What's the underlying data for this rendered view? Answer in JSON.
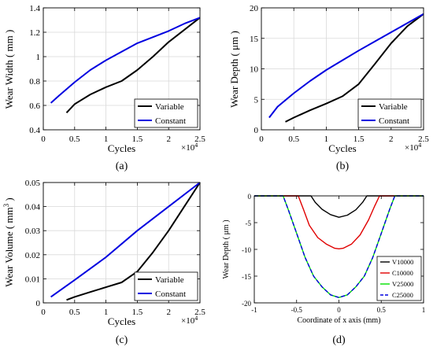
{
  "chart_data": [
    {
      "type": "line",
      "panel_label": "(a)",
      "xlabel": "Cycles",
      "ylabel": "Wear Width ( mm )",
      "x_multiplier": "×10",
      "x_multiplier_exp": "4",
      "xlim": [
        0,
        2.5
      ],
      "ylim": [
        0.4,
        1.4
      ],
      "xticks": [
        "0",
        "0.5",
        "1",
        "1.5",
        "2",
        "2.5"
      ],
      "yticks": [
        "0.4",
        "0.6",
        "0.8",
        "1",
        "1.2",
        "1.4"
      ],
      "xtick_values": [
        0,
        0.5,
        1,
        1.5,
        2,
        2.5
      ],
      "ytick_values": [
        0.4,
        0.6,
        0.8,
        1.0,
        1.2,
        1.4
      ],
      "grid": true,
      "legend_position": "bottom-right",
      "series": [
        {
          "name": "Variable",
          "color": "#000000",
          "x": [
            0.37,
            0.5,
            0.75,
            1.0,
            1.25,
            1.5,
            1.75,
            2.0,
            2.25,
            2.5
          ],
          "y": [
            0.54,
            0.61,
            0.69,
            0.75,
            0.8,
            0.89,
            1.0,
            1.12,
            1.22,
            1.32
          ]
        },
        {
          "name": "Constant",
          "color": "#0000e0",
          "x": [
            0.12,
            0.25,
            0.5,
            0.75,
            1.0,
            1.25,
            1.5,
            1.75,
            2.0,
            2.25,
            2.5
          ],
          "y": [
            0.62,
            0.68,
            0.79,
            0.89,
            0.97,
            1.04,
            1.11,
            1.16,
            1.21,
            1.27,
            1.32
          ]
        }
      ]
    },
    {
      "type": "line",
      "panel_label": "(b)",
      "xlabel": "Cycles",
      "ylabel": "Wear Depth ( μm )",
      "x_multiplier": "×10",
      "x_multiplier_exp": "4",
      "xlim": [
        0,
        2.5
      ],
      "ylim": [
        0,
        20
      ],
      "xticks": [
        "0",
        "0.5",
        "1",
        "1.5",
        "2",
        "2.5"
      ],
      "yticks": [
        "0",
        "5",
        "10",
        "15",
        "20"
      ],
      "xtick_values": [
        0,
        0.5,
        1,
        1.5,
        2,
        2.5
      ],
      "ytick_values": [
        0,
        5,
        10,
        15,
        20
      ],
      "grid": true,
      "legend_position": "bottom-right",
      "series": [
        {
          "name": "Variable",
          "color": "#000000",
          "x": [
            0.37,
            0.5,
            0.75,
            1.0,
            1.25,
            1.5,
            1.75,
            2.0,
            2.25,
            2.5
          ],
          "y": [
            1.3,
            2.0,
            3.2,
            4.3,
            5.5,
            7.5,
            10.8,
            14.2,
            17.0,
            19.0
          ]
        },
        {
          "name": "Constant",
          "color": "#0000e0",
          "x": [
            0.12,
            0.25,
            0.5,
            0.75,
            1.0,
            1.25,
            1.5,
            1.75,
            2.0,
            2.25,
            2.5
          ],
          "y": [
            2.0,
            3.8,
            6.0,
            8.0,
            9.8,
            11.4,
            13.0,
            14.5,
            16.0,
            17.5,
            19.0
          ]
        }
      ]
    },
    {
      "type": "line",
      "panel_label": "(c)",
      "xlabel": "Cycles",
      "ylabel": "Wear Volume ( mm",
      "ylabel_sup": "3",
      "ylabel_end": " )",
      "x_multiplier": "×10",
      "x_multiplier_exp": "4",
      "xlim": [
        0,
        2.5
      ],
      "ylim": [
        0,
        0.05
      ],
      "xticks": [
        "0",
        "0.5",
        "1",
        "1.5",
        "2",
        "2.5"
      ],
      "yticks": [
        "0",
        "0.01",
        "0.02",
        "0.03",
        "0.04",
        "0.05"
      ],
      "xtick_values": [
        0,
        0.5,
        1,
        1.5,
        2,
        2.5
      ],
      "ytick_values": [
        0,
        0.01,
        0.02,
        0.03,
        0.04,
        0.05
      ],
      "grid": true,
      "legend_position": "bottom-right",
      "series": [
        {
          "name": "Variable",
          "color": "#000000",
          "x": [
            0.37,
            0.5,
            0.75,
            1.0,
            1.25,
            1.5,
            1.75,
            2.0,
            2.25,
            2.5
          ],
          "y": [
            0.0012,
            0.0025,
            0.0045,
            0.0065,
            0.0085,
            0.013,
            0.021,
            0.03,
            0.04,
            0.05
          ]
        },
        {
          "name": "Constant",
          "color": "#0000e0",
          "x": [
            0.12,
            0.5,
            1.0,
            1.5,
            2.0,
            2.5
          ],
          "y": [
            0.0025,
            0.0095,
            0.019,
            0.03,
            0.04,
            0.05
          ]
        }
      ]
    },
    {
      "type": "line",
      "panel_label": "(d)",
      "xlabel": "Coordinate of x axis (mm)",
      "ylabel": "Wear Depth ( μm )",
      "xlim": [
        -1,
        1
      ],
      "ylim": [
        -20,
        0
      ],
      "xticks": [
        "-1",
        "-0.5",
        "0",
        "0.5",
        "1"
      ],
      "yticks": [
        "0",
        "-5",
        "-10",
        "-15",
        "-20"
      ],
      "xtick_values": [
        -1,
        -0.5,
        0,
        0.5,
        1
      ],
      "ytick_values": [
        0,
        -5,
        -10,
        -15,
        -20
      ],
      "grid": false,
      "legend_position": "bottom-right",
      "series": [
        {
          "name": "V10000",
          "color": "#000000",
          "dash": false,
          "x": [
            -1,
            -0.33,
            -0.28,
            -0.2,
            -0.1,
            0,
            0.1,
            0.2,
            0.28,
            0.33,
            1
          ],
          "y": [
            0,
            0,
            -1.2,
            -2.5,
            -3.5,
            -4.0,
            -3.6,
            -2.6,
            -1.2,
            0,
            0
          ]
        },
        {
          "name": "C10000",
          "color": "#e00000",
          "dash": false,
          "x": [
            -1,
            -0.48,
            -0.42,
            -0.35,
            -0.25,
            -0.15,
            -0.05,
            0,
            0.05,
            0.15,
            0.25,
            0.35,
            0.42,
            0.48,
            1
          ],
          "y": [
            0,
            0,
            -2.5,
            -5.5,
            -7.8,
            -9.0,
            -9.8,
            -9.9,
            -9.8,
            -9.0,
            -7.3,
            -4.5,
            -2.0,
            0,
            0
          ]
        },
        {
          "name": "V25000",
          "color": "#00e000",
          "dash": false,
          "x": [
            -1,
            -0.66,
            -0.6,
            -0.5,
            -0.4,
            -0.3,
            -0.2,
            -0.1,
            0,
            0.1,
            0.2,
            0.3,
            0.4,
            0.5,
            0.6,
            0.66,
            1
          ],
          "y": [
            0,
            0,
            -2.5,
            -7.0,
            -11.5,
            -15.0,
            -17.0,
            -18.5,
            -19.0,
            -18.5,
            -17.0,
            -15.0,
            -11.5,
            -7.0,
            -2.5,
            0,
            0
          ]
        },
        {
          "name": "C25000",
          "color": "#0000e0",
          "dash": true,
          "x": [
            -1,
            -0.66,
            -0.6,
            -0.5,
            -0.4,
            -0.3,
            -0.2,
            -0.1,
            0,
            0.1,
            0.2,
            0.3,
            0.4,
            0.5,
            0.6,
            0.66,
            1
          ],
          "y": [
            0,
            0,
            -2.5,
            -7.0,
            -11.5,
            -15.0,
            -17.0,
            -18.5,
            -19.0,
            -18.5,
            -17.0,
            -15.0,
            -11.5,
            -7.0,
            -2.5,
            0,
            0
          ]
        }
      ]
    }
  ]
}
